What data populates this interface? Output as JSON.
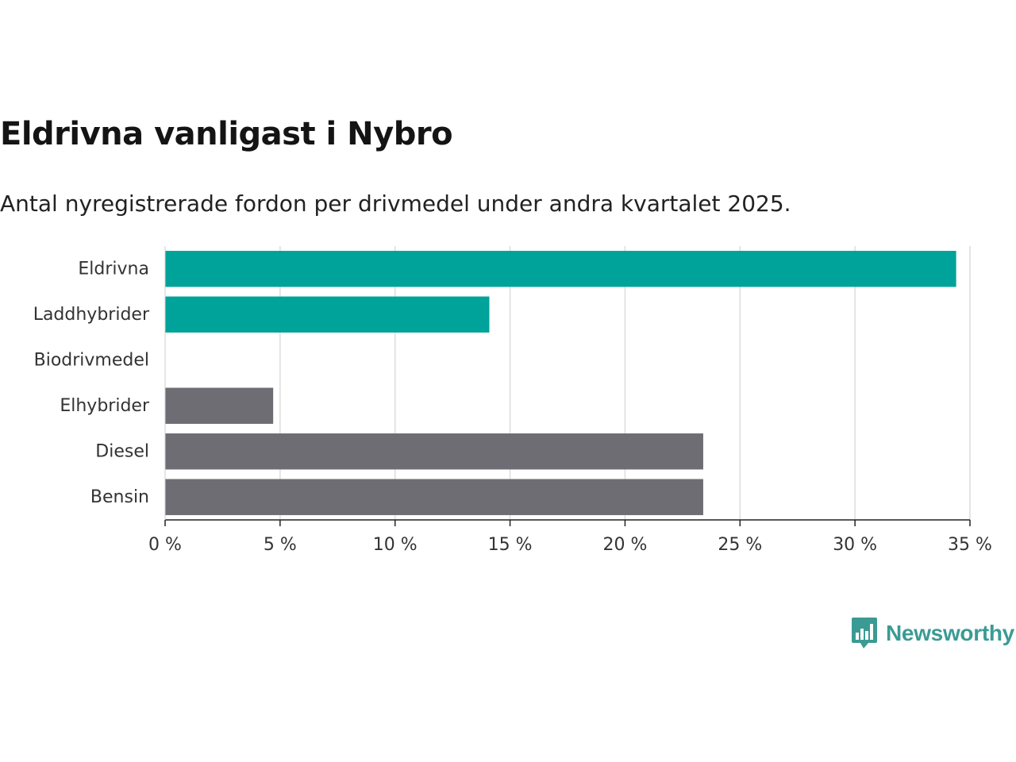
{
  "chart_data": {
    "type": "bar",
    "orientation": "horizontal",
    "title": "Eldrivna vanligast i Nybro",
    "subtitle": "Antal nyregistrerade fordon per drivmedel under andra kvartalet 2025.",
    "categories": [
      "Eldrivna",
      "Laddhybrider",
      "Biodrivmedel",
      "Elhybrider",
      "Diesel",
      "Bensin"
    ],
    "values": [
      34.4,
      14.1,
      0,
      4.7,
      23.4,
      23.4
    ],
    "bar_colors": [
      "#00a39a",
      "#00a39a",
      "#6e6d73",
      "#6e6d73",
      "#6e6d73",
      "#6e6d73"
    ],
    "xlim": [
      0,
      35
    ],
    "xticks": [
      0,
      5,
      10,
      15,
      20,
      25,
      30,
      35
    ],
    "xtick_labels": [
      "0 %",
      "5 %",
      "10 %",
      "15 %",
      "20 %",
      "25 %",
      "30 %",
      "35 %"
    ],
    "xlabel": "",
    "ylabel": "",
    "grid": "vertical",
    "legend": "none"
  },
  "brand": {
    "name": "Newsworthy",
    "logo_icon": "newsworthy-bar-chart-icon",
    "color": "#3b9b94"
  }
}
